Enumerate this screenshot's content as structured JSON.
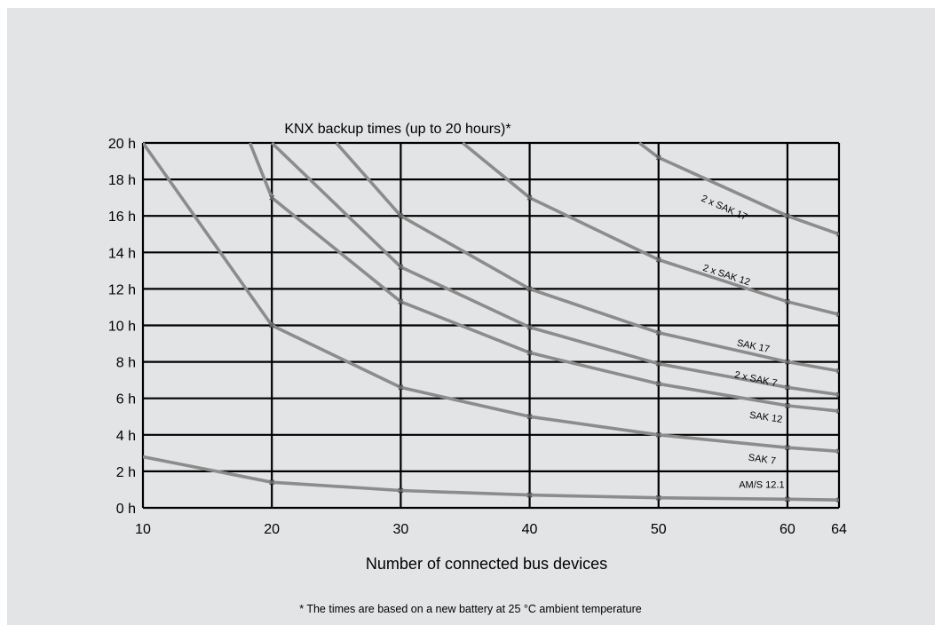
{
  "chart_data": {
    "type": "line",
    "title": "KNX backup times (up to 20 hours)*",
    "xlabel": "Number of connected bus devices",
    "ylabel": "",
    "footnote": "* The times are based on a new battery at 25 °C ambient temperature",
    "x_ticks": [
      "10",
      "20",
      "30",
      "40",
      "50",
      "60",
      "64"
    ],
    "x_tick_values": [
      10,
      20,
      30,
      40,
      50,
      60,
      64
    ],
    "y_ticks": [
      "0 h",
      "2 h",
      "4 h",
      "6 h",
      "8 h",
      "10 h",
      "12 h",
      "14 h",
      "16 h",
      "18 h",
      "20 h"
    ],
    "y_tick_values": [
      0,
      2,
      4,
      6,
      8,
      10,
      12,
      14,
      16,
      18,
      20
    ],
    "xlim": [
      10,
      64
    ],
    "ylim": [
      0,
      20
    ],
    "grid": true,
    "line_color": "#8c8c8c",
    "series": [
      {
        "name": "AM/S 12.1",
        "x": [
          10,
          20,
          30,
          40,
          50,
          60,
          64
        ],
        "y": [
          2.8,
          1.4,
          0.95,
          0.7,
          0.55,
          0.47,
          0.43
        ],
        "label_pos": [
          58,
          1.1
        ],
        "label_angle": 0
      },
      {
        "name": "SAK 7",
        "x": [
          10,
          20,
          30,
          40,
          50,
          60,
          64
        ],
        "y": [
          20,
          10,
          6.6,
          5,
          4,
          3.3,
          3.1
        ],
        "label_pos": [
          58,
          2.5
        ],
        "label_angle": 8
      },
      {
        "name": "SAK 12",
        "x": [
          18.3,
          20,
          30,
          40,
          50,
          60,
          64
        ],
        "y": [
          20,
          17,
          11.3,
          8.5,
          6.8,
          5.6,
          5.3
        ],
        "label_pos": [
          58.3,
          4.8
        ],
        "label_angle": 8
      },
      {
        "name": "2 x SAK 7",
        "x": [
          20,
          30,
          40,
          50,
          60,
          64
        ],
        "y": [
          20,
          13.2,
          9.9,
          7.9,
          6.6,
          6.2
        ],
        "label_pos": [
          57.5,
          6.9
        ],
        "label_angle": 12
      },
      {
        "name": "SAK 17",
        "x": [
          25,
          30,
          40,
          50,
          60,
          64
        ],
        "y": [
          20,
          16,
          12,
          9.6,
          8,
          7.5
        ],
        "label_pos": [
          57.3,
          8.7
        ],
        "label_angle": 12
      },
      {
        "name": "2 x SAK 12",
        "x": [
          34.8,
          40,
          50,
          60,
          64
        ],
        "y": [
          20,
          17,
          13.6,
          11.3,
          10.6
        ],
        "label_pos": [
          55.2,
          12.6
        ],
        "label_angle": 18
      },
      {
        "name": "2 x SAK 17",
        "x": [
          48.5,
          50,
          60,
          64
        ],
        "y": [
          20,
          19.2,
          16,
          15
        ],
        "label_pos": [
          55,
          16.3
        ],
        "label_angle": 24
      }
    ]
  }
}
